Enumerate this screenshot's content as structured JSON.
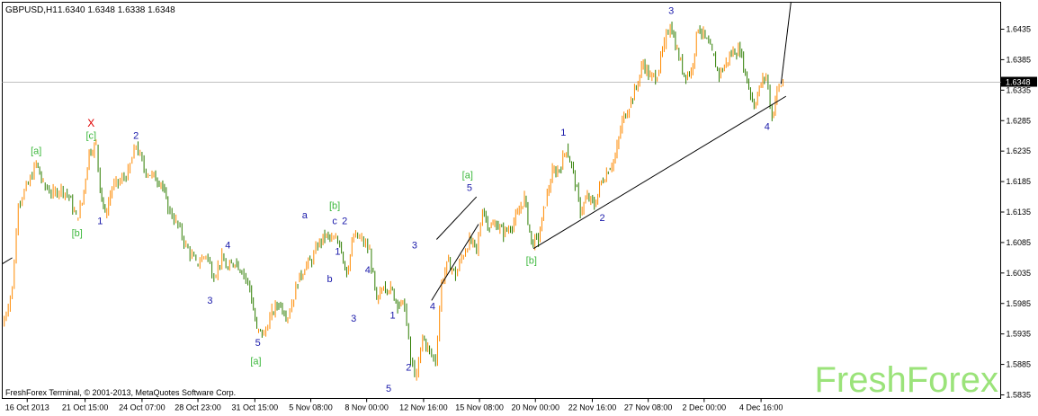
{
  "header": {
    "symbol": "GBPUSD,H1",
    "ohlc": "1.6340 1.6348 1.6338 1.6348"
  },
  "footer": {
    "copyright": "FreshForex Terminal, © 2001-2013, MetaQuotes Software Corp."
  },
  "watermark": "FreshForex",
  "colors": {
    "bull": "#ff8a00",
    "bear": "#2e7d00",
    "wave_blue": "#1a1aaa",
    "wave_green": "#3cb83c",
    "wave_red": "#e00000",
    "watermark": "#9be37a"
  },
  "chart_data": {
    "type": "candlestick",
    "ylim": [
      1.5835,
      1.6485
    ],
    "x_range": [
      0,
      100
    ],
    "current_price": "1.6348",
    "current_price_value": 1.6348,
    "y_ticks": [
      {
        "label": "1.6435",
        "value": 1.6435
      },
      {
        "label": "1.6385",
        "value": 1.6385
      },
      {
        "label": "1.6335",
        "value": 1.6335
      },
      {
        "label": "1.6285",
        "value": 1.6285
      },
      {
        "label": "1.6235",
        "value": 1.6235
      },
      {
        "label": "1.6185",
        "value": 1.6185
      },
      {
        "label": "1.6135",
        "value": 1.6135
      },
      {
        "label": "1.6085",
        "value": 1.6085
      },
      {
        "label": "1.6035",
        "value": 1.6035
      },
      {
        "label": "1.5985",
        "value": 1.5985
      },
      {
        "label": "1.5935",
        "value": 1.5935
      },
      {
        "label": "1.5885",
        "value": 1.5885
      },
      {
        "label": "1.5835",
        "value": 1.5835
      }
    ],
    "x_ticks": [
      {
        "label": "16 Oct 2013",
        "x": 2.5
      },
      {
        "label": "21 Oct 15:00",
        "x": 8.3
      },
      {
        "label": "24 Oct 07:00",
        "x": 14.0
      },
      {
        "label": "28 Oct 23:00",
        "x": 19.6
      },
      {
        "label": "31 Oct 15:00",
        "x": 25.3
      },
      {
        "label": "5 Nov 08:00",
        "x": 30.9
      },
      {
        "label": "8 Nov 00:00",
        "x": 36.5
      },
      {
        "label": "12 Nov 16:00",
        "x": 42.2
      },
      {
        "label": "15 Nov 08:00",
        "x": 47.8
      },
      {
        "label": "20 Nov 00:00",
        "x": 53.4
      },
      {
        "label": "22 Nov 16:00",
        "x": 59.1
      },
      {
        "label": "27 Nov 08:00",
        "x": 64.7
      },
      {
        "label": "2 Dec 00:00",
        "x": 70.3
      },
      {
        "label": "4 Dec 16:00",
        "x": 76.0
      }
    ],
    "price_path": [
      [
        0,
        1.5948
      ],
      [
        1,
        1.601
      ],
      [
        1.6,
        1.615
      ],
      [
        2.6,
        1.618
      ],
      [
        3.4,
        1.6215
      ],
      [
        4.1,
        1.618
      ],
      [
        5.1,
        1.6165
      ],
      [
        5.9,
        1.6175
      ],
      [
        6.7,
        1.616
      ],
      [
        7.4,
        1.6125
      ],
      [
        8.0,
        1.615
      ],
      [
        8.7,
        1.6235
      ],
      [
        9.4,
        1.6245
      ],
      [
        9.8,
        1.6175
      ],
      [
        10.3,
        1.613
      ],
      [
        11.0,
        1.6175
      ],
      [
        11.8,
        1.6185
      ],
      [
        12.6,
        1.62
      ],
      [
        13.4,
        1.6245
      ],
      [
        14.2,
        1.6205
      ],
      [
        15.0,
        1.6195
      ],
      [
        15.9,
        1.6185
      ],
      [
        16.6,
        1.614
      ],
      [
        17.4,
        1.612
      ],
      [
        18.4,
        1.608
      ],
      [
        19.4,
        1.605
      ],
      [
        20.4,
        1.6065
      ],
      [
        21.2,
        1.603
      ],
      [
        22.0,
        1.606
      ],
      [
        22.6,
        1.604
      ],
      [
        23.3,
        1.6055
      ],
      [
        24.0,
        1.604
      ],
      [
        24.8,
        1.601
      ],
      [
        25.5,
        1.594
      ],
      [
        26.2,
        1.5935
      ],
      [
        27.0,
        1.597
      ],
      [
        27.7,
        1.5985
      ],
      [
        28.6,
        1.5965
      ],
      [
        29.6,
        1.602
      ],
      [
        30.3,
        1.6045
      ],
      [
        31.0,
        1.6055
      ],
      [
        31.6,
        1.608
      ],
      [
        32.3,
        1.6095
      ],
      [
        33.0,
        1.609
      ],
      [
        33.8,
        1.6085
      ],
      [
        34.5,
        1.6035
      ],
      [
        35.2,
        1.6095
      ],
      [
        36.0,
        1.609
      ],
      [
        36.8,
        1.607
      ],
      [
        37.5,
        1.5985
      ],
      [
        38.2,
        1.6015
      ],
      [
        38.9,
        1.601
      ],
      [
        39.6,
        1.5985
      ],
      [
        40.3,
        1.598
      ],
      [
        40.9,
        1.589
      ],
      [
        41.5,
        1.5865
      ],
      [
        42.1,
        1.593
      ],
      [
        42.8,
        1.5905
      ],
      [
        43.4,
        1.589
      ],
      [
        44.0,
        1.602
      ],
      [
        44.7,
        1.6055
      ],
      [
        45.4,
        1.603
      ],
      [
        46.0,
        1.606
      ],
      [
        46.8,
        1.609
      ],
      [
        47.5,
        1.607
      ],
      [
        48.1,
        1.614
      ],
      [
        48.8,
        1.611
      ],
      [
        49.5,
        1.6115
      ],
      [
        50.2,
        1.61
      ],
      [
        50.9,
        1.611
      ],
      [
        51.6,
        1.613
      ],
      [
        52.3,
        1.616
      ],
      [
        53.0,
        1.6085
      ],
      [
        53.7,
        1.609
      ],
      [
        54.4,
        1.615
      ],
      [
        55.1,
        1.62
      ],
      [
        55.8,
        1.6205
      ],
      [
        56.5,
        1.624
      ],
      [
        57.2,
        1.62
      ],
      [
        57.9,
        1.6135
      ],
      [
        58.6,
        1.616
      ],
      [
        59.3,
        1.6145
      ],
      [
        60.0,
        1.6185
      ],
      [
        60.7,
        1.6205
      ],
      [
        61.4,
        1.6225
      ],
      [
        62.1,
        1.6285
      ],
      [
        62.8,
        1.631
      ],
      [
        63.5,
        1.634
      ],
      [
        64.2,
        1.638
      ],
      [
        64.9,
        1.6355
      ],
      [
        65.6,
        1.636
      ],
      [
        66.3,
        1.641
      ],
      [
        66.9,
        1.6445
      ],
      [
        67.6,
        1.64
      ],
      [
        68.3,
        1.636
      ],
      [
        69.0,
        1.6365
      ],
      [
        69.7,
        1.644
      ],
      [
        70.4,
        1.642
      ],
      [
        71.1,
        1.6395
      ],
      [
        71.8,
        1.636
      ],
      [
        72.5,
        1.638
      ],
      [
        73.2,
        1.64
      ],
      [
        73.9,
        1.64
      ],
      [
        74.6,
        1.635
      ],
      [
        75.3,
        1.631
      ],
      [
        76.0,
        1.6345
      ],
      [
        76.5,
        1.636
      ],
      [
        77.1,
        1.629
      ],
      [
        77.6,
        1.6335
      ],
      [
        78.2,
        1.6348
      ]
    ],
    "trendlines": [
      {
        "from": [
          0,
          1.605
        ],
        "to": [
          1.0,
          1.606
        ]
      },
      {
        "from": [
          53.2,
          1.6075
        ],
        "to": [
          78.5,
          1.6325
        ]
      },
      {
        "from": [
          43.5,
          1.609
        ],
        "to": [
          47.5,
          1.616
        ]
      },
      {
        "from": [
          43.0,
          1.599
        ],
        "to": [
          47.7,
          1.6115
        ]
      },
      {
        "from": [
          78.0,
          1.6345
        ],
        "to": [
          79.0,
          1.648
        ]
      }
    ],
    "wave_labels": [
      {
        "text": "X",
        "x": 8.9,
        "y": 1.6275,
        "color": "red"
      },
      {
        "text": "[c]",
        "x": 8.9,
        "y": 1.6255,
        "color": "green"
      },
      {
        "text": "[a]",
        "x": 3.4,
        "y": 1.623,
        "color": "green"
      },
      {
        "text": "[b]",
        "x": 7.5,
        "y": 1.6095,
        "color": "green"
      },
      {
        "text": "1",
        "x": 9.8,
        "y": 1.6115,
        "color": "blue"
      },
      {
        "text": "2",
        "x": 13.4,
        "y": 1.6255,
        "color": "blue"
      },
      {
        "text": "3",
        "x": 20.8,
        "y": 1.5985,
        "color": "blue"
      },
      {
        "text": "4",
        "x": 22.6,
        "y": 1.6075,
        "color": "blue"
      },
      {
        "text": "5",
        "x": 25.6,
        "y": 1.5915,
        "color": "blue"
      },
      {
        "text": "[a]",
        "x": 25.4,
        "y": 1.5885,
        "color": "green"
      },
      {
        "text": "a",
        "x": 30.3,
        "y": 1.6125,
        "color": "blue"
      },
      {
        "text": "b",
        "x": 32.8,
        "y": 1.602,
        "color": "blue"
      },
      {
        "text": "c",
        "x": 33.3,
        "y": 1.6115,
        "color": "blue"
      },
      {
        "text": "[b]",
        "x": 33.3,
        "y": 1.614,
        "color": "green"
      },
      {
        "text": "1",
        "x": 33.6,
        "y": 1.6065,
        "color": "blue"
      },
      {
        "text": "2",
        "x": 34.3,
        "y": 1.6115,
        "color": "blue"
      },
      {
        "text": "3",
        "x": 35.2,
        "y": 1.5955,
        "color": "blue"
      },
      {
        "text": "4",
        "x": 36.6,
        "y": 1.6035,
        "color": "blue"
      },
      {
        "text": "1",
        "x": 39.1,
        "y": 1.596,
        "color": "blue"
      },
      {
        "text": "5",
        "x": 38.7,
        "y": 1.584,
        "color": "blue"
      },
      {
        "text": "2",
        "x": 40.7,
        "y": 1.5875,
        "color": "blue"
      },
      {
        "text": "3",
        "x": 41.3,
        "y": 1.6075,
        "color": "blue"
      },
      {
        "text": "4",
        "x": 43.1,
        "y": 1.5975,
        "color": "blue"
      },
      {
        "text": "5",
        "x": 46.8,
        "y": 1.617,
        "color": "blue"
      },
      {
        "text": "[a]",
        "x": 46.6,
        "y": 1.619,
        "color": "green"
      },
      {
        "text": "[b]",
        "x": 53.0,
        "y": 1.605,
        "color": "green"
      },
      {
        "text": "1",
        "x": 56.2,
        "y": 1.626,
        "color": "blue"
      },
      {
        "text": "2",
        "x": 60.1,
        "y": 1.612,
        "color": "blue"
      },
      {
        "text": "3",
        "x": 67.0,
        "y": 1.646,
        "color": "blue"
      },
      {
        "text": "4",
        "x": 76.6,
        "y": 1.627,
        "color": "blue"
      }
    ]
  }
}
